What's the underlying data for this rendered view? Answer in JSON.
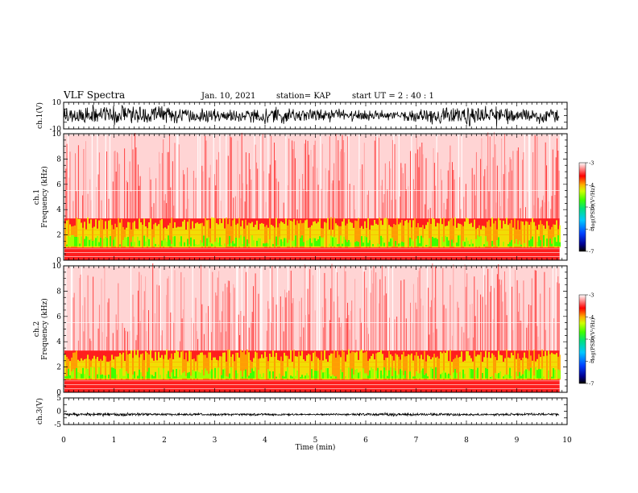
{
  "header": {
    "title": "VLF Spectra",
    "date": "Jan. 10, 2021",
    "station": "station= KAP",
    "start_ut": "start UT =  2 : 40 : 1"
  },
  "chart_data": [
    {
      "type": "line",
      "panel": "ch1-waveform",
      "ylabel": "ch.1(V)",
      "ylim": [
        -10,
        10
      ],
      "y_ticks": [
        "10",
        "-10"
      ],
      "xlim": [
        0,
        10
      ],
      "x_end": 9.85,
      "color": "#000000"
    },
    {
      "type": "heatmap",
      "panel": "ch1-spectrogram",
      "ylabel": "Frequency (kHz)",
      "ylabel2": "ch.1",
      "ylim": [
        0,
        10
      ],
      "y_ticks": [
        "0",
        "2",
        "4",
        "6",
        "8",
        "10"
      ],
      "xlim": [
        0,
        10
      ],
      "x_end": 9.85,
      "colorbar": {
        "label": "log(PSD)(V²/Hz)",
        "range": [
          -7,
          -3
        ],
        "ticks": [
          "-3",
          "-4",
          "-5",
          "-6",
          "-7"
        ]
      }
    },
    {
      "type": "heatmap",
      "panel": "ch2-spectrogram",
      "ylabel": "Frequency (kHz)",
      "ylabel2": "ch.2",
      "ylim": [
        0,
        10
      ],
      "y_ticks": [
        "0",
        "2",
        "4",
        "6",
        "8",
        "10"
      ],
      "xlim": [
        0,
        10
      ],
      "x_end": 9.85,
      "colorbar": {
        "label": "log(PSD)(V²/Hz)",
        "range": [
          -7,
          -3
        ],
        "ticks": [
          "-3",
          "-4",
          "-5",
          "-6",
          "-7"
        ]
      }
    },
    {
      "type": "line",
      "panel": "ch3-waveform",
      "ylabel": "ch.3(V)",
      "ylim": [
        -5,
        5
      ],
      "y_ticks": [
        "5",
        "0",
        "-5"
      ],
      "xlim": [
        0,
        10
      ],
      "x_end": 9.85,
      "xlabel": "Time (min)",
      "x_ticks": [
        "0",
        "1",
        "2",
        "3",
        "4",
        "5",
        "6",
        "7",
        "8",
        "9",
        "10"
      ],
      "color": "#000000"
    }
  ]
}
